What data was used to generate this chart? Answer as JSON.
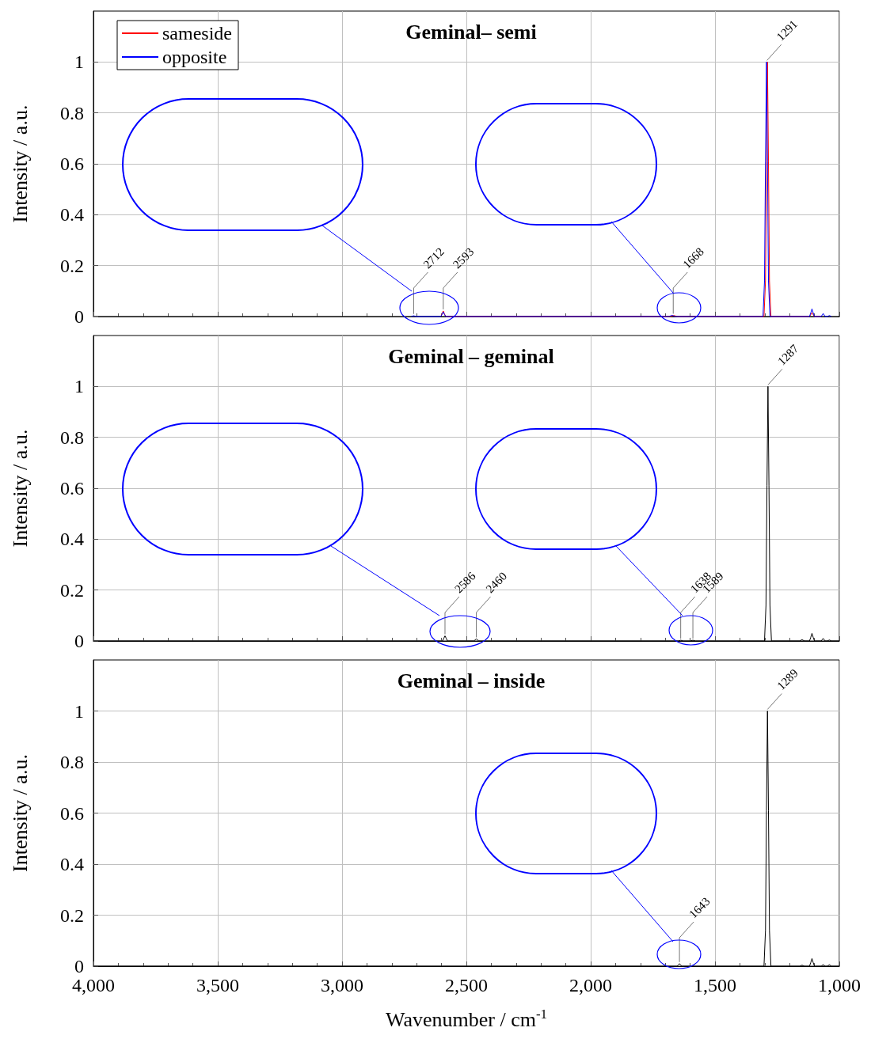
{
  "chart_data": [
    {
      "type": "line",
      "title": "Geminal– semi",
      "ylabel": "Intensity / a.u.",
      "xlim": [
        4000,
        1000
      ],
      "ylim": [
        0,
        1.2
      ],
      "xticks": [
        4000,
        3500,
        3000,
        2500,
        2000,
        1500,
        1000
      ],
      "yticks": [
        0,
        0.2,
        0.4,
        0.6,
        0.8,
        1
      ],
      "grid": true,
      "legend": "top left",
      "tick_labels": "y",
      "series": [
        {
          "name": "sameside",
          "color": "#ff0000",
          "x": [
            2603,
            2598,
            2593,
            2588,
            2583,
            1678,
            1665,
            1652,
            1303,
            1297,
            1293,
            1289,
            1285,
            1281,
            1275,
            1120,
            1115,
            1110,
            1105,
            1100,
            1073
          ],
          "values": [
            0,
            0.01,
            0.022,
            0.01,
            0,
            0,
            0.004,
            0,
            0,
            0.14,
            0.61,
            1,
            0.61,
            0.14,
            0,
            0,
            0.007,
            0.015,
            0.007,
            0,
            0
          ]
        },
        {
          "name": "opposite",
          "color": "#0000ff",
          "x": [
            2722,
            2712,
            2702,
            2603,
            2598,
            2593,
            2588,
            2583,
            1685,
            1673,
            1661,
            1307,
            1301,
            1297,
            1293,
            1289,
            1285,
            1279,
            1120,
            1115,
            1110,
            1105,
            1100,
            1073,
            1065,
            1057,
            1048,
            1040,
            1032
          ],
          "values": [
            0,
            0.003,
            0,
            0,
            0.008,
            0.018,
            0.008,
            0,
            0,
            0.005,
            0,
            0,
            0.14,
            0.61,
            1,
            0.61,
            0.14,
            0,
            0,
            0.014,
            0.03,
            0.014,
            0,
            0,
            0.012,
            0,
            0,
            0.004,
            0
          ]
        }
      ],
      "annotations": [
        {
          "text": "2712",
          "x": 2712,
          "y": 0.004
        },
        {
          "text": "2593",
          "x": 2593,
          "y": 0.022
        },
        {
          "text": "1668",
          "x": 1668,
          "y": 0.005
        },
        {
          "text": "1291",
          "x": 1291,
          "y": 1
        }
      ]
    },
    {
      "type": "line",
      "title": "Geminal – geminal",
      "ylabel": "Intensity / a.u.",
      "xlim": [
        4000,
        1000
      ],
      "ylim": [
        0,
        1.2
      ],
      "xticks": [
        4000,
        3500,
        3000,
        2500,
        2000,
        1500,
        1000
      ],
      "yticks": [
        0,
        0.2,
        0.4,
        0.6,
        0.8,
        1
      ],
      "grid": true,
      "tick_labels": "y",
      "series": [
        {
          "color": "#000000",
          "x": [
            4000,
            2596,
            2591,
            2586,
            2581,
            2576,
            2470,
            2460,
            2450,
            1648,
            1638,
            1628,
            1599,
            1589,
            1579,
            1301,
            1295,
            1291,
            1287,
            1283,
            1279,
            1273,
            1160,
            1150,
            1140,
            1120,
            1115,
            1110,
            1105,
            1100,
            1073,
            1065,
            1057,
            1048,
            1040,
            1032,
            1000
          ],
          "values": [
            0,
            0,
            0.01,
            0.02,
            0.01,
            0,
            0,
            0.008,
            0,
            0,
            0.003,
            0,
            0,
            0.003,
            0,
            0,
            0.14,
            0.61,
            1,
            0.61,
            0.14,
            0,
            0,
            0.005,
            0,
            0,
            0.014,
            0.03,
            0.014,
            0,
            0,
            0.01,
            0,
            0,
            0.004,
            0,
            0
          ]
        }
      ],
      "annotations": [
        {
          "text": "2586",
          "x": 2586,
          "y": 0.02
        },
        {
          "text": "2460",
          "x": 2460,
          "y": 0.008
        },
        {
          "text": "1638",
          "x": 1638,
          "y": 0.003
        },
        {
          "text": "1589",
          "x": 1589,
          "y": 0.003
        },
        {
          "text": "1287",
          "x": 1287,
          "y": 1
        }
      ]
    },
    {
      "type": "line",
      "title": "Geminal – inside",
      "xlabel": "Wavenumber / cm$^{-1}$",
      "ylabel": "Intensity / a.u.",
      "xlim": [
        4000,
        1000
      ],
      "ylim": [
        0,
        1.2
      ],
      "xticks": [
        {
          "value": 4000,
          "label": "4,000"
        },
        {
          "value": 3500,
          "label": "3,500"
        },
        {
          "value": 3000,
          "label": "3,000"
        },
        {
          "value": 2500,
          "label": "2,500"
        },
        {
          "value": 2000,
          "label": "2,000"
        },
        {
          "value": 1500,
          "label": "1,500"
        },
        {
          "value": 1000,
          "label": "1,000"
        }
      ],
      "yticks": [
        0,
        0.2,
        0.4,
        0.6,
        0.8,
        1
      ],
      "grid": true,
      "series": [
        {
          "color": "#000000",
          "x": [
            4000,
            1653,
            1648,
            1643,
            1638,
            1633,
            1303,
            1297,
            1293,
            1289,
            1285,
            1281,
            1275,
            1160,
            1150,
            1140,
            1120,
            1115,
            1110,
            1105,
            1100,
            1073,
            1065,
            1057,
            1048,
            1040,
            1032,
            1000
          ],
          "values": [
            0,
            0,
            0.005,
            0.01,
            0.005,
            0,
            0,
            0.14,
            0.61,
            1,
            0.61,
            0.14,
            0,
            0,
            0.004,
            0,
            0,
            0.014,
            0.03,
            0.014,
            0,
            0,
            0.006,
            0,
            0,
            0.006,
            0,
            0
          ]
        }
      ],
      "annotations": [
        {
          "text": "1643",
          "x": 1643,
          "y": 0.01
        },
        {
          "text": "1289",
          "x": 1289,
          "y": 1
        }
      ]
    }
  ]
}
